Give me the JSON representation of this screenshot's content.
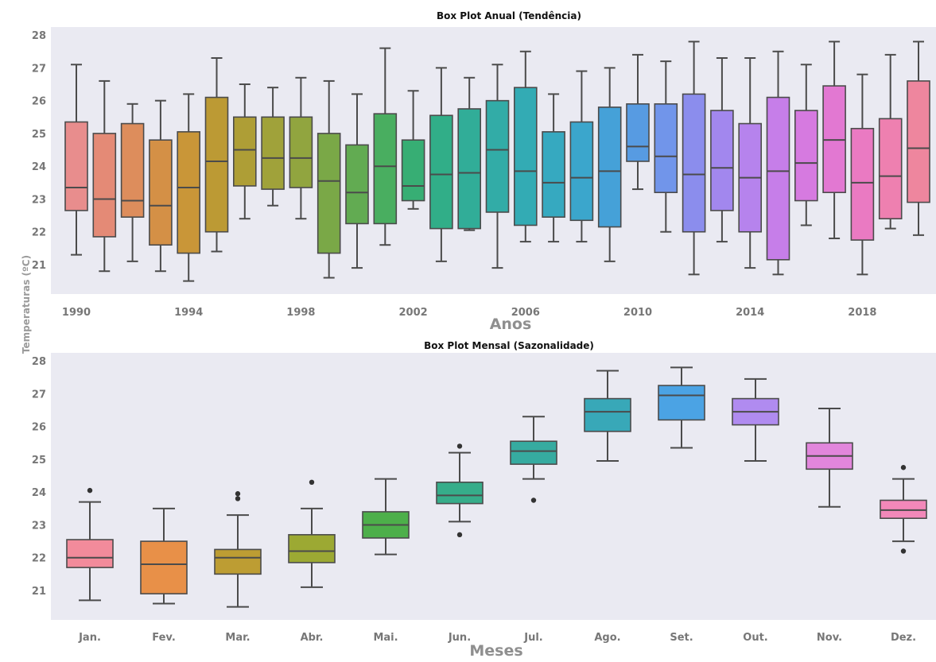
{
  "ylabel": "Temperaturas (ºC)",
  "chart_data": [
    {
      "type": "box",
      "title": "Box Plot Anual (Tendência)",
      "xlabel": "Anos",
      "ylabel": "Temperaturas (ºC)",
      "ylim": [
        20.2,
        28.1
      ],
      "y_ticks": [
        21,
        22,
        23,
        24,
        25,
        26,
        27,
        28
      ],
      "x_tick_labels": [
        "1990",
        "1994",
        "1998",
        "2002",
        "2006",
        "2010",
        "2014",
        "2018"
      ],
      "x_tick_categories": [
        "1990",
        "1994",
        "1998",
        "2002",
        "2006",
        "2010",
        "2014",
        "2018"
      ],
      "grid": false,
      "categories": [
        "1990",
        "1991",
        "1992",
        "1993",
        "1994",
        "1995",
        "1996",
        "1997",
        "1998",
        "1999",
        "2000",
        "2001",
        "2002",
        "2003",
        "2004",
        "2005",
        "2006",
        "2007",
        "2008",
        "2009",
        "2010",
        "2011",
        "2012",
        "2013",
        "2014",
        "2015",
        "2016",
        "2017",
        "2018",
        "2019",
        "2020"
      ],
      "colors": [
        "#e88d8d",
        "#e48a76",
        "#dd8d5c",
        "#d49046",
        "#c99638",
        "#bc9a34",
        "#ae9e36",
        "#a0a23a",
        "#91a53f",
        "#7aa847",
        "#62ab52",
        "#49ae60",
        "#37ae74",
        "#31ae88",
        "#31ad98",
        "#32aca7",
        "#33abb4",
        "#36a9c0",
        "#3ba6cc",
        "#45a1d8",
        "#579be2",
        "#7195ea",
        "#8b8ded",
        "#a287ee",
        "#b683ed",
        "#c67ee9",
        "#d67ae0",
        "#e278d2",
        "#ea7ac2",
        "#ee80b0",
        "#ee869e"
      ],
      "boxes": [
        {
          "whislo": 21.3,
          "q1": 22.65,
          "med": 23.35,
          "q3": 25.35,
          "whishi": 27.1,
          "fliers": []
        },
        {
          "whislo": 20.8,
          "q1": 21.85,
          "med": 23.0,
          "q3": 25.0,
          "whishi": 26.6,
          "fliers": []
        },
        {
          "whislo": 21.1,
          "q1": 22.45,
          "med": 22.95,
          "q3": 25.3,
          "whishi": 25.9,
          "fliers": []
        },
        {
          "whislo": 20.8,
          "q1": 21.6,
          "med": 22.8,
          "q3": 24.8,
          "whishi": 26.0,
          "fliers": []
        },
        {
          "whislo": 20.5,
          "q1": 21.35,
          "med": 23.35,
          "q3": 25.05,
          "whishi": 26.2,
          "fliers": []
        },
        {
          "whislo": 21.4,
          "q1": 22.0,
          "med": 24.15,
          "q3": 26.1,
          "whishi": 27.3,
          "fliers": []
        },
        {
          "whislo": 22.4,
          "q1": 23.4,
          "med": 24.5,
          "q3": 25.5,
          "whishi": 26.5,
          "fliers": []
        },
        {
          "whislo": 22.8,
          "q1": 23.3,
          "med": 24.25,
          "q3": 25.5,
          "whishi": 26.4,
          "fliers": []
        },
        {
          "whislo": 22.4,
          "q1": 23.35,
          "med": 24.25,
          "q3": 25.5,
          "whishi": 26.7,
          "fliers": []
        },
        {
          "whislo": 20.6,
          "q1": 21.35,
          "med": 23.55,
          "q3": 25.0,
          "whishi": 26.6,
          "fliers": []
        },
        {
          "whislo": 20.9,
          "q1": 22.25,
          "med": 23.2,
          "q3": 24.65,
          "whishi": 26.2,
          "fliers": []
        },
        {
          "whislo": 21.6,
          "q1": 22.25,
          "med": 24.0,
          "q3": 25.6,
          "whishi": 27.6,
          "fliers": []
        },
        {
          "whislo": 22.7,
          "q1": 22.95,
          "med": 23.4,
          "q3": 24.8,
          "whishi": 26.3,
          "fliers": []
        },
        {
          "whislo": 21.1,
          "q1": 22.1,
          "med": 23.75,
          "q3": 25.55,
          "whishi": 27.0,
          "fliers": []
        },
        {
          "whislo": 22.05,
          "q1": 22.1,
          "med": 23.8,
          "q3": 25.75,
          "whishi": 26.7,
          "fliers": []
        },
        {
          "whislo": 20.9,
          "q1": 22.6,
          "med": 24.5,
          "q3": 26.0,
          "whishi": 27.1,
          "fliers": []
        },
        {
          "whislo": 21.7,
          "q1": 22.2,
          "med": 23.85,
          "q3": 26.4,
          "whishi": 27.5,
          "fliers": []
        },
        {
          "whislo": 21.7,
          "q1": 22.45,
          "med": 23.5,
          "q3": 25.05,
          "whishi": 26.2,
          "fliers": []
        },
        {
          "whislo": 21.7,
          "q1": 22.35,
          "med": 23.65,
          "q3": 25.35,
          "whishi": 26.9,
          "fliers": []
        },
        {
          "whislo": 21.1,
          "q1": 22.15,
          "med": 23.85,
          "q3": 25.8,
          "whishi": 27.0,
          "fliers": []
        },
        {
          "whislo": 23.3,
          "q1": 24.15,
          "med": 24.6,
          "q3": 25.9,
          "whishi": 27.4,
          "fliers": []
        },
        {
          "whislo": 22.0,
          "q1": 23.2,
          "med": 24.3,
          "q3": 25.9,
          "whishi": 27.2,
          "fliers": []
        },
        {
          "whislo": 20.7,
          "q1": 22.0,
          "med": 23.75,
          "q3": 26.2,
          "whishi": 27.8,
          "fliers": []
        },
        {
          "whislo": 21.7,
          "q1": 22.65,
          "med": 23.95,
          "q3": 25.7,
          "whishi": 27.3,
          "fliers": []
        },
        {
          "whislo": 20.9,
          "q1": 22.0,
          "med": 23.65,
          "q3": 25.3,
          "whishi": 27.3,
          "fliers": []
        },
        {
          "whislo": 20.7,
          "q1": 21.15,
          "med": 23.85,
          "q3": 26.1,
          "whishi": 27.5,
          "fliers": []
        },
        {
          "whislo": 22.2,
          "q1": 22.95,
          "med": 24.1,
          "q3": 25.7,
          "whishi": 27.1,
          "fliers": []
        },
        {
          "whislo": 21.8,
          "q1": 23.2,
          "med": 24.8,
          "q3": 26.45,
          "whishi": 27.8,
          "fliers": []
        },
        {
          "whislo": 20.7,
          "q1": 21.75,
          "med": 23.5,
          "q3": 25.15,
          "whishi": 26.8,
          "fliers": []
        },
        {
          "whislo": 22.1,
          "q1": 22.4,
          "med": 23.7,
          "q3": 25.45,
          "whishi": 27.4,
          "fliers": []
        },
        {
          "whislo": 21.9,
          "q1": 22.9,
          "med": 24.55,
          "q3": 26.6,
          "whishi": 27.8,
          "fliers": []
        }
      ]
    },
    {
      "type": "box",
      "title": "Box Plot Mensal (Sazonalidade)",
      "xlabel": "Meses",
      "ylabel": "Temperaturas (ºC)",
      "ylim": [
        20.2,
        28.1
      ],
      "y_ticks": [
        21,
        22,
        23,
        24,
        25,
        26,
        27,
        28
      ],
      "grid": false,
      "categories": [
        "Jan.",
        "Fev.",
        "Mar.",
        "Abr.",
        "Mai.",
        "Jun.",
        "Jul.",
        "Ago.",
        "Set.",
        "Out.",
        "Nov.",
        "Dez."
      ],
      "x_tick_labels": [
        "Jan.",
        "Fev.",
        "Mar.",
        "Abr.",
        "Mai.",
        "Jun.",
        "Jul.",
        "Ago.",
        "Set.",
        "Out.",
        "Nov.",
        "Dez."
      ],
      "x_tick_categories": [
        "Jan.",
        "Fev.",
        "Mar.",
        "Abr.",
        "Mai.",
        "Jun.",
        "Jul.",
        "Ago.",
        "Set.",
        "Out.",
        "Nov.",
        "Dez."
      ],
      "colors": [
        "#f28b9b",
        "#e89048",
        "#bd9d33",
        "#9ca933",
        "#4daf4a",
        "#36ad8a",
        "#36aba0",
        "#38a8b8",
        "#4ba3e4",
        "#b08bf0",
        "#e286dc",
        "#f288b9"
      ],
      "boxes": [
        {
          "whislo": 20.7,
          "q1": 21.7,
          "med": 22.0,
          "q3": 22.55,
          "whishi": 23.7,
          "fliers": [
            24.05
          ]
        },
        {
          "whislo": 20.6,
          "q1": 20.9,
          "med": 21.8,
          "q3": 22.5,
          "whishi": 23.5,
          "fliers": []
        },
        {
          "whislo": 20.5,
          "q1": 21.5,
          "med": 22.0,
          "q3": 22.25,
          "whishi": 23.3,
          "fliers": [
            23.8,
            23.95
          ]
        },
        {
          "whislo": 21.1,
          "q1": 21.85,
          "med": 22.2,
          "q3": 22.7,
          "whishi": 23.5,
          "fliers": [
            24.3
          ]
        },
        {
          "whislo": 22.1,
          "q1": 22.6,
          "med": 23.0,
          "q3": 23.4,
          "whishi": 24.4,
          "fliers": []
        },
        {
          "whislo": 23.1,
          "q1": 23.65,
          "med": 23.9,
          "q3": 24.3,
          "whishi": 25.2,
          "fliers": [
            22.7,
            25.4
          ]
        },
        {
          "whislo": 24.4,
          "q1": 24.85,
          "med": 25.25,
          "q3": 25.55,
          "whishi": 26.3,
          "fliers": [
            23.75
          ]
        },
        {
          "whislo": 24.95,
          "q1": 25.85,
          "med": 26.45,
          "q3": 26.85,
          "whishi": 27.7,
          "fliers": []
        },
        {
          "whislo": 25.35,
          "q1": 26.2,
          "med": 26.95,
          "q3": 27.25,
          "whishi": 27.8,
          "fliers": []
        },
        {
          "whislo": 24.95,
          "q1": 26.05,
          "med": 26.45,
          "q3": 26.85,
          "whishi": 27.45,
          "fliers": []
        },
        {
          "whislo": 23.55,
          "q1": 24.7,
          "med": 25.1,
          "q3": 25.5,
          "whishi": 26.55,
          "fliers": []
        },
        {
          "whislo": 22.5,
          "q1": 23.2,
          "med": 23.45,
          "q3": 23.75,
          "whishi": 24.4,
          "fliers": [
            22.2,
            24.75
          ]
        }
      ]
    }
  ]
}
